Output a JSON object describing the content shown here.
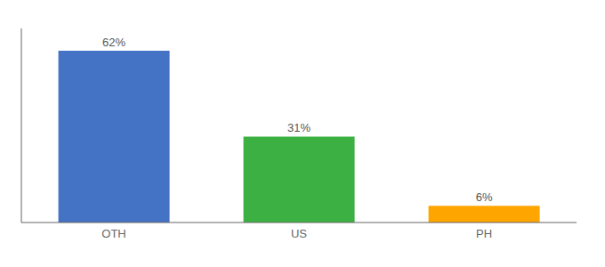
{
  "chart_data": {
    "type": "bar",
    "categories": [
      "OTH",
      "US",
      "PH"
    ],
    "values": [
      62,
      31,
      6
    ],
    "value_labels": [
      "62%",
      "31%",
      "6%"
    ],
    "data_labels": true,
    "colors": [
      "#4472C4",
      "#3CB043",
      "#FFA500"
    ],
    "ylim": [
      0,
      70
    ],
    "grid": false,
    "tick_labels": "x"
  }
}
